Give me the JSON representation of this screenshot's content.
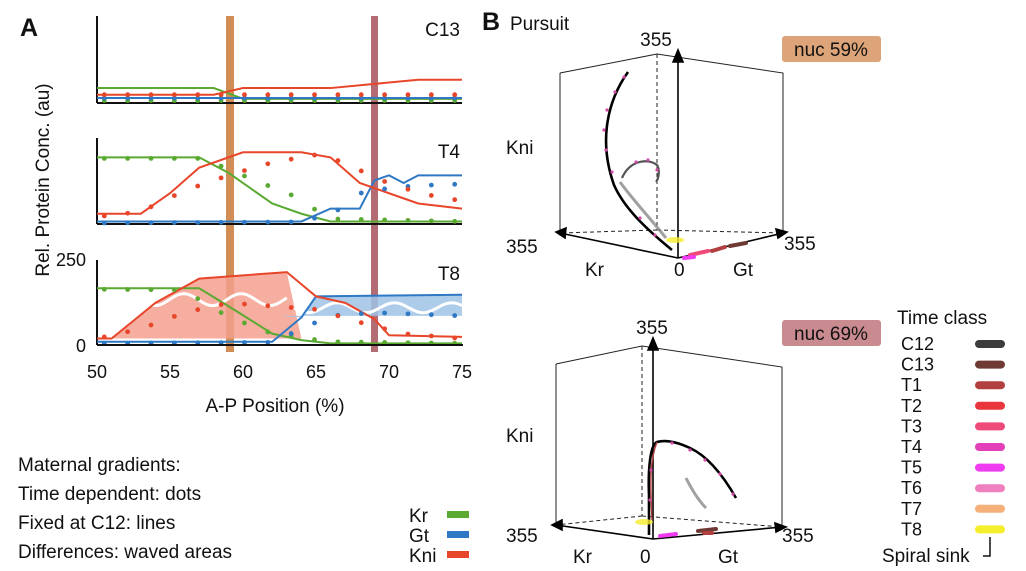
{
  "panel_a": {
    "letter": "A",
    "ylabel": "Rel. Protein Conc. (au)",
    "xlabel": "A-P Position (%)",
    "x_ticks": [
      "50",
      "55",
      "60",
      "65",
      "70",
      "75"
    ],
    "t8_y_ticks": [
      "250",
      "0"
    ],
    "subplots": [
      "C13",
      "T4",
      "T8"
    ],
    "legend_title": "Maternal gradients:",
    "legend_lines": [
      "Time dependent: dots",
      "Fixed at C12: lines",
      "Differences: waved areas"
    ],
    "genes": [
      {
        "label": "Kr",
        "color": "#5aaa32"
      },
      {
        "label": "Gt",
        "color": "#2f78c4"
      },
      {
        "label": "Kni",
        "color": "#e8462a"
      }
    ],
    "band_colors": {
      "nuc59": "#c8742f",
      "nuc69": "#a24b55"
    }
  },
  "panel_b": {
    "letter": "B",
    "title": "Pursuit",
    "plot1": {
      "badge": "nuc 59%",
      "axis_top": "355",
      "kni": "Kni",
      "kr_max": "355",
      "kr": "Kr",
      "zero": "0",
      "gt": "Gt",
      "gt_max": "355",
      "badge_color": "#dca478"
    },
    "plot2": {
      "badge": "nuc 69%",
      "axis_top": "355",
      "kni": "Kni",
      "kr_max": "355",
      "kr": "Kr",
      "zero": "0",
      "gt": "Gt",
      "gt_max": "355",
      "badge_color": "#c98a90"
    },
    "time_class_title": "Time class",
    "time_classes": [
      {
        "label": "C12",
        "color": "#3c3c3c"
      },
      {
        "label": "C13",
        "color": "#6e3a33"
      },
      {
        "label": "T1",
        "color": "#b23f3f"
      },
      {
        "label": "T2",
        "color": "#e8363c"
      },
      {
        "label": "T3",
        "color": "#f04a7a"
      },
      {
        "label": "T4",
        "color": "#e33fb8"
      },
      {
        "label": "T5",
        "color": "#f03cf0"
      },
      {
        "label": "T6",
        "color": "#ef7fbf"
      },
      {
        "label": "T7",
        "color": "#f5b07a"
      },
      {
        "label": "T8",
        "color": "#f5ee2a"
      }
    ],
    "spiral_sink": "Spiral sink"
  },
  "chart_data": [
    {
      "type": "line",
      "title": "C13",
      "xlabel": "A-P Position (%)",
      "ylabel": "Rel. Protein Conc. (au)",
      "xlim": [
        50,
        75
      ],
      "series": [
        {
          "name": "Kr",
          "kind": "line",
          "x": [
            50,
            58,
            60,
            75
          ],
          "y": [
            18,
            18,
            5,
            5
          ]
        },
        {
          "name": "Gt",
          "kind": "line",
          "x": [
            50,
            52,
            58,
            75
          ],
          "y": [
            6,
            6,
            6,
            6
          ]
        },
        {
          "name": "Kni",
          "kind": "line",
          "x": [
            50,
            58,
            60,
            66,
            72,
            75
          ],
          "y": [
            10,
            10,
            18,
            18,
            28,
            28
          ]
        },
        {
          "name": "Kr",
          "kind": "dots",
          "x": [
            50,
            75
          ],
          "y": [
            3,
            3
          ]
        },
        {
          "name": "Gt",
          "kind": "dots",
          "x": [
            50,
            75
          ],
          "y": [
            6,
            6
          ]
        },
        {
          "name": "Kni",
          "kind": "dots",
          "x": [
            50,
            75
          ],
          "y": [
            10,
            10
          ]
        }
      ]
    },
    {
      "type": "line",
      "title": "T4",
      "xlabel": "A-P Position (%)",
      "ylabel": "Rel. Protein Conc. (au)",
      "xlim": [
        50,
        75
      ],
      "series": [
        {
          "name": "Kr",
          "kind": "line",
          "x": [
            50,
            57,
            59,
            62,
            64,
            66,
            75
          ],
          "y": [
            130,
            130,
            100,
            40,
            20,
            5,
            5
          ]
        },
        {
          "name": "Gt",
          "kind": "line",
          "x": [
            50,
            64,
            66,
            68,
            69,
            70,
            71,
            72,
            75
          ],
          "y": [
            5,
            5,
            30,
            30,
            85,
            95,
            80,
            95,
            95
          ]
        },
        {
          "name": "Kni",
          "kind": "line",
          "x": [
            50,
            53,
            55,
            57,
            60,
            64,
            66,
            68,
            70,
            72,
            75
          ],
          "y": [
            20,
            20,
            60,
            110,
            140,
            140,
            130,
            80,
            60,
            40,
            30
          ]
        },
        {
          "name": "Kr",
          "kind": "dots",
          "x": [
            50,
            57,
            59,
            61,
            63,
            66,
            75
          ],
          "y": [
            128,
            128,
            108,
            82,
            62,
            10,
            5
          ]
        },
        {
          "name": "Gt",
          "kind": "dots",
          "x": [
            50,
            64,
            66,
            67,
            68,
            70,
            72,
            75
          ],
          "y": [
            2,
            4,
            20,
            35,
            60,
            70,
            75,
            78
          ]
        },
        {
          "name": "Kni",
          "kind": "dots",
          "x": [
            50,
            53,
            56,
            59,
            62,
            65,
            67,
            69,
            71,
            73,
            75
          ],
          "y": [
            14,
            24,
            65,
            95,
            120,
            135,
            120,
            90,
            70,
            55,
            45
          ]
        }
      ]
    },
    {
      "type": "line",
      "title": "T8",
      "xlabel": "A-P Position (%)",
      "ylabel": "Rel. Protein Conc. (au)",
      "xlim": [
        50,
        75
      ],
      "ylim": [
        0,
        250
      ],
      "series": [
        {
          "name": "Kr",
          "kind": "line",
          "x": [
            50,
            57,
            59,
            62,
            64,
            66,
            75
          ],
          "y": [
            175,
            175,
            120,
            35,
            15,
            5,
            5
          ]
        },
        {
          "name": "Gt",
          "kind": "line",
          "x": [
            50,
            62,
            64,
            65,
            75
          ],
          "y": [
            10,
            10,
            85,
            150,
            155
          ]
        },
        {
          "name": "Kni",
          "kind": "line",
          "x": [
            50,
            51,
            54,
            57,
            63,
            65,
            67,
            69,
            70,
            75
          ],
          "y": [
            20,
            20,
            130,
            205,
            225,
            150,
            130,
            80,
            30,
            25
          ]
        },
        {
          "name": "Kr",
          "kind": "dots",
          "x": [
            50,
            56,
            58,
            60,
            62,
            66,
            75
          ],
          "y": [
            172,
            170,
            110,
            70,
            35,
            10,
            5
          ]
        },
        {
          "name": "Gt",
          "kind": "dots",
          "x": [
            50,
            62,
            64,
            66,
            69,
            72,
            75
          ],
          "y": [
            5,
            8,
            50,
            90,
            100,
            95,
            90
          ]
        },
        {
          "name": "Kni",
          "kind": "dots",
          "x": [
            50,
            53,
            56,
            59,
            62,
            65,
            68,
            71,
            75
          ],
          "y": [
            20,
            50,
            100,
            130,
            120,
            110,
            70,
            35,
            20
          ]
        }
      ]
    }
  ]
}
